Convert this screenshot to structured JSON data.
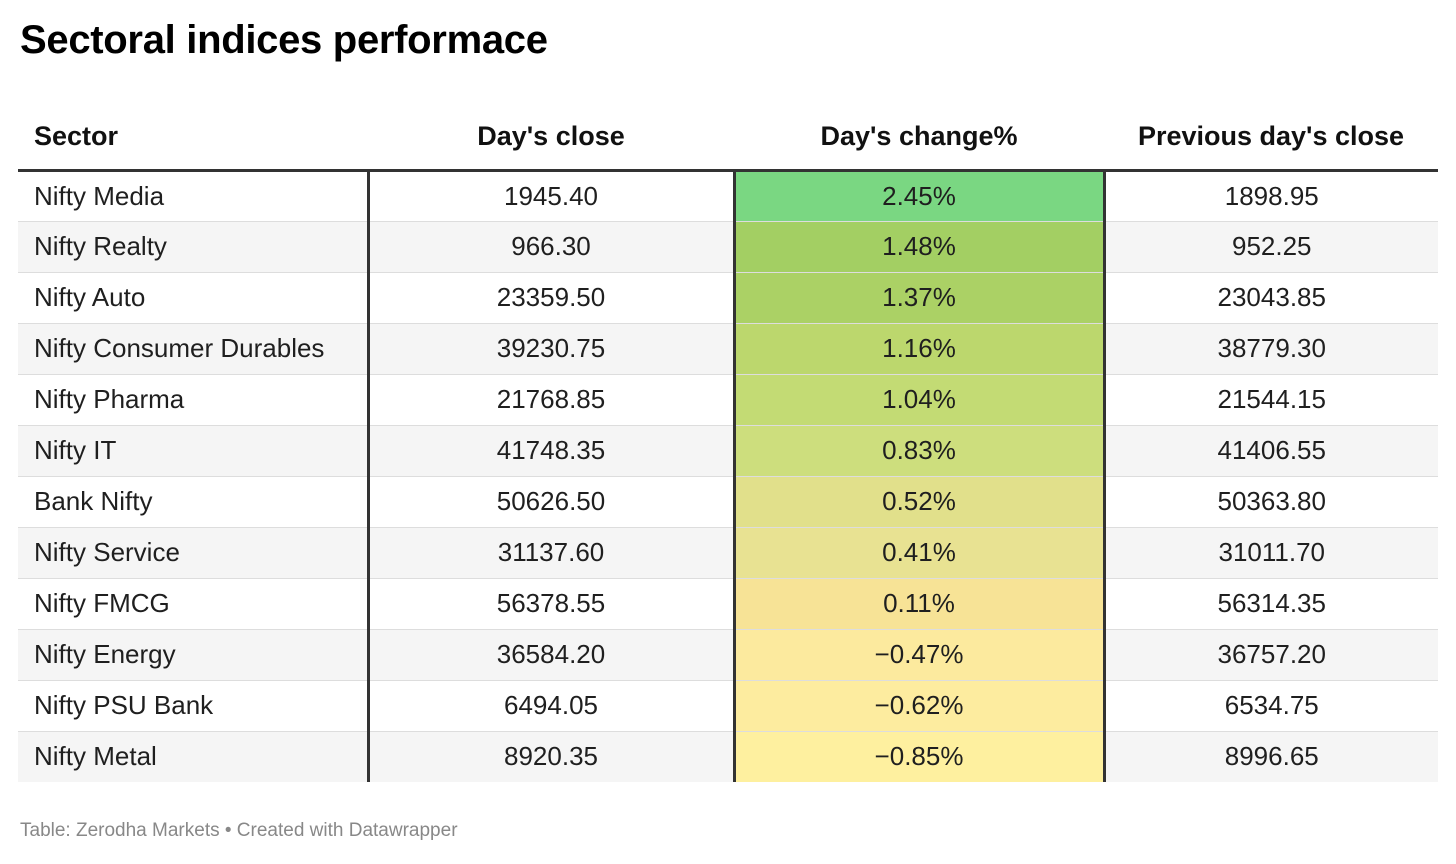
{
  "title": "Sectoral indices performace",
  "footer": "Table: Zerodha Markets • Created with Datawrapper",
  "chart_data": {
    "type": "table",
    "title": "Sectoral indices performace",
    "columns": [
      "Sector",
      "Day's close",
      "Day's change%",
      "Previous day's close"
    ],
    "rows": [
      {
        "sector": "Nifty Media",
        "close": "1945.40",
        "change": "2.45%",
        "change_value": 2.45,
        "prev": "1898.95"
      },
      {
        "sector": "Nifty Realty",
        "close": "966.30",
        "change": "1.48%",
        "change_value": 1.48,
        "prev": "952.25"
      },
      {
        "sector": "Nifty Auto",
        "close": "23359.50",
        "change": "1.37%",
        "change_value": 1.37,
        "prev": "23043.85"
      },
      {
        "sector": "Nifty Consumer Durables",
        "close": "39230.75",
        "change": "1.16%",
        "change_value": 1.16,
        "prev": "38779.30"
      },
      {
        "sector": "Nifty Pharma",
        "close": "21768.85",
        "change": "1.04%",
        "change_value": 1.04,
        "prev": "21544.15"
      },
      {
        "sector": "Nifty IT",
        "close": "41748.35",
        "change": "0.83%",
        "change_value": 0.83,
        "prev": "41406.55"
      },
      {
        "sector": "Bank Nifty",
        "close": "50626.50",
        "change": "0.52%",
        "change_value": 0.52,
        "prev": "50363.80"
      },
      {
        "sector": "Nifty Service",
        "close": "31137.60",
        "change": "0.41%",
        "change_value": 0.41,
        "prev": "31011.70"
      },
      {
        "sector": "Nifty FMCG",
        "close": "56378.55",
        "change": "0.11%",
        "change_value": 0.11,
        "prev": "56314.35"
      },
      {
        "sector": "Nifty Energy",
        "close": "36584.20",
        "change": "−0.47%",
        "change_value": -0.47,
        "prev": "36757.20"
      },
      {
        "sector": "Nifty PSU Bank",
        "close": "6494.05",
        "change": "−0.62%",
        "change_value": -0.62,
        "prev": "6534.75"
      },
      {
        "sector": "Nifty Metal",
        "close": "8920.35",
        "change": "−0.85%",
        "change_value": -0.85,
        "prev": "8996.65"
      }
    ],
    "heatmap_colors": [
      "#7ad782",
      "#a3cf63",
      "#abd165",
      "#bcd76d",
      "#c3db74",
      "#cdde7d",
      "#e1e08b",
      "#e8e292",
      "#f7e396",
      "#fcea9e",
      "#fdec9f",
      "#fef09f"
    ]
  }
}
